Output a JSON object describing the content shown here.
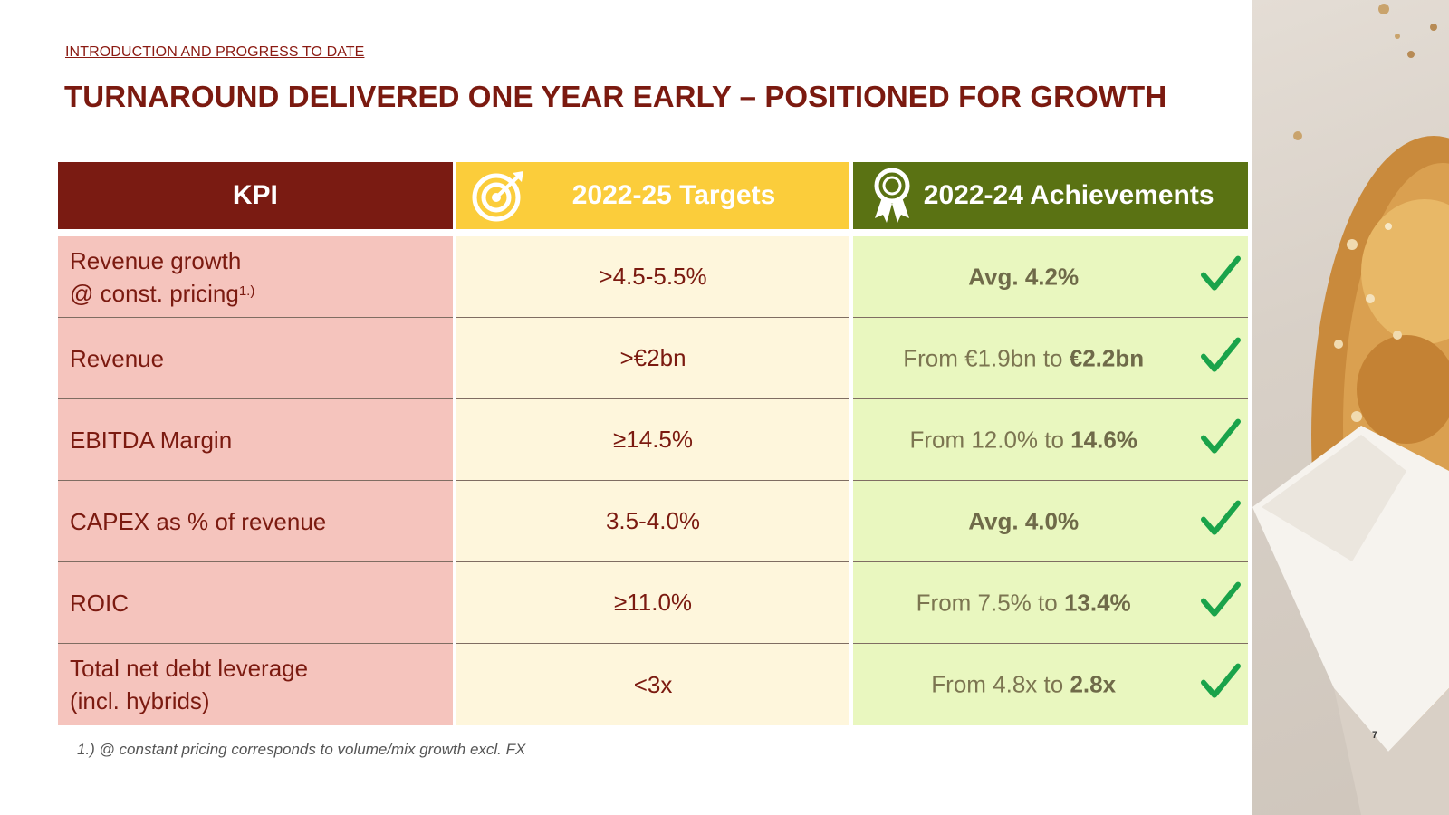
{
  "header": {
    "section": "INTRODUCTION AND PROGRESS TO DATE",
    "title": "TURNAROUND DELIVERED ONE YEAR EARLY – POSITIONED FOR GROWTH"
  },
  "table": {
    "columns": {
      "kpi": "KPI",
      "targets": "2022-25 Targets",
      "achievements": "2022-24 Achievements"
    },
    "rows": [
      {
        "kpi_line1": "Revenue growth",
        "kpi_line2": "@ const. pricing",
        "kpi_sup": "1.)",
        "target": ">4.5-5.5%",
        "ach_prefix": "",
        "ach_bold": "Avg. 4.2%",
        "achieved": true
      },
      {
        "kpi_line1": "Revenue",
        "kpi_line2": "",
        "kpi_sup": "",
        "target": ">€2bn",
        "ach_prefix": "From €1.9bn to ",
        "ach_bold": "€2.2bn",
        "achieved": true
      },
      {
        "kpi_line1": "EBITDA Margin",
        "kpi_line2": "",
        "kpi_sup": "",
        "target": "≥14.5%",
        "ach_prefix": "From 12.0% to ",
        "ach_bold": "14.6%",
        "achieved": true
      },
      {
        "kpi_line1": "CAPEX as % of revenue",
        "kpi_line2": "",
        "kpi_sup": "",
        "target": "3.5-4.0%",
        "ach_prefix": "",
        "ach_bold": "Avg. 4.0%",
        "achieved": true
      },
      {
        "kpi_line1": "ROIC",
        "kpi_line2": "",
        "kpi_sup": "",
        "target": "≥11.0%",
        "ach_prefix": "From 7.5% to ",
        "ach_bold": "13.4%",
        "achieved": true
      },
      {
        "kpi_line1": "Total net debt leverage",
        "kpi_line2": "(incl. hybrids)",
        "kpi_sup": "",
        "target": "<3x",
        "ach_prefix": "From 4.8x to ",
        "ach_bold": "2.8x",
        "achieved": true
      }
    ]
  },
  "footnote": "1.) @ constant pricing corresponds to volume/mix growth excl. FX",
  "page_number": "7",
  "colors": {
    "kpi_header": "#7a1b12",
    "targets_header": "#fbcd3b",
    "achievements_header": "#5a7213",
    "check": "#1aa34a"
  }
}
